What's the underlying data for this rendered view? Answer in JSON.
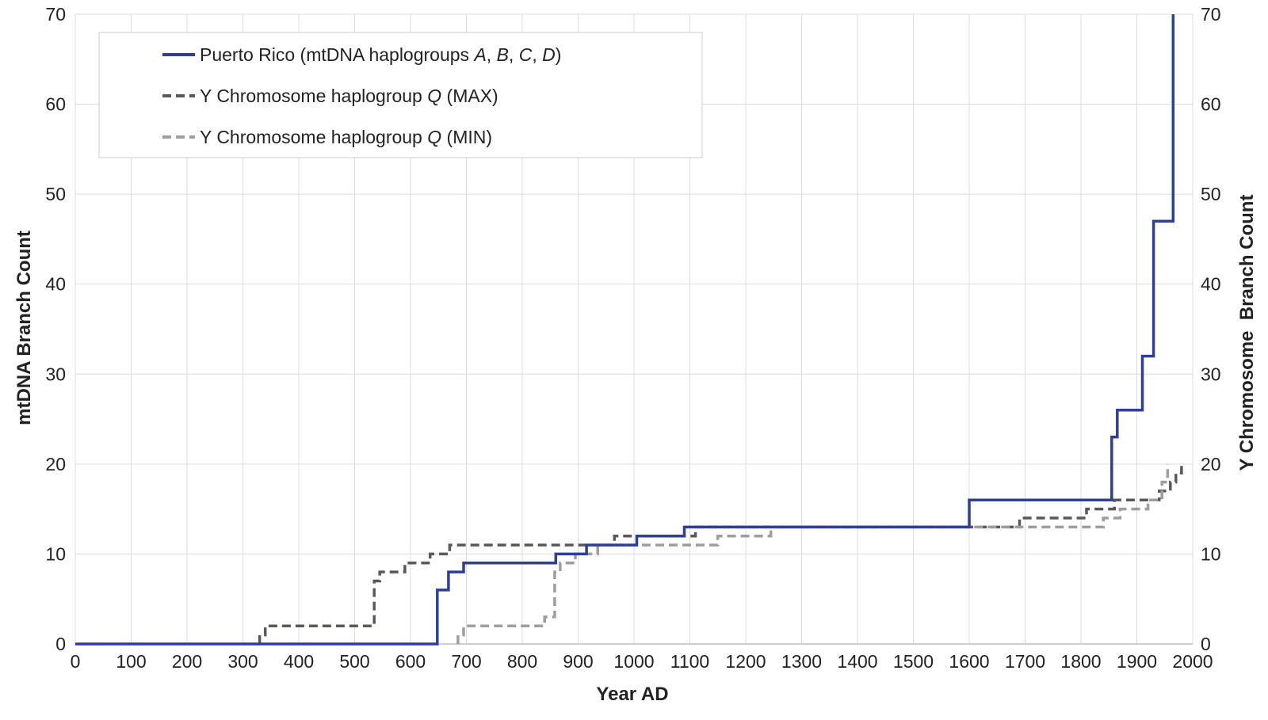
{
  "chart_data": {
    "type": "line",
    "title": "",
    "xlabel": "Year AD",
    "ylabel": "mtDNA Branch Count",
    "y2label": "Y Chromosome  Branch Count",
    "xlim": [
      0,
      2000
    ],
    "ylim": [
      0,
      70
    ],
    "y2lim": [
      0,
      70
    ],
    "x_ticks": [
      0,
      100,
      200,
      300,
      400,
      500,
      600,
      700,
      800,
      900,
      1000,
      1100,
      1200,
      1300,
      1400,
      1500,
      1600,
      1700,
      1800,
      1900,
      2000
    ],
    "y_ticks": [
      0,
      10,
      20,
      30,
      40,
      50,
      60,
      70
    ],
    "y2_ticks": [
      0,
      10,
      20,
      30,
      40,
      50,
      60,
      70
    ],
    "grid": true,
    "legend_position": "top-left",
    "series": [
      {
        "name": "Puerto Rico (mtDNA haplogroups A, B, C, D)",
        "legend_parts": [
          {
            "text": "Puerto Rico (mtDNA haplogroups ",
            "italic": false
          },
          {
            "text": "A",
            "italic": true
          },
          {
            "text": ", ",
            "italic": false
          },
          {
            "text": "B",
            "italic": true
          },
          {
            "text": ", ",
            "italic": false
          },
          {
            "text": "C",
            "italic": true
          },
          {
            "text": ", ",
            "italic": false
          },
          {
            "text": "D",
            "italic": true
          },
          {
            "text": ")",
            "italic": false
          }
        ],
        "axis": "left",
        "style": "solid",
        "color": "#2e3f9a",
        "step": true,
        "points": [
          [
            0,
            0
          ],
          [
            648,
            0
          ],
          [
            648,
            6
          ],
          [
            668,
            6
          ],
          [
            668,
            8
          ],
          [
            695,
            8
          ],
          [
            695,
            9
          ],
          [
            860,
            9
          ],
          [
            860,
            10
          ],
          [
            915,
            10
          ],
          [
            915,
            11
          ],
          [
            1005,
            11
          ],
          [
            1005,
            12
          ],
          [
            1090,
            12
          ],
          [
            1090,
            13
          ],
          [
            1600,
            13
          ],
          [
            1600,
            16
          ],
          [
            1855,
            16
          ],
          [
            1855,
            23
          ],
          [
            1865,
            23
          ],
          [
            1865,
            26
          ],
          [
            1910,
            26
          ],
          [
            1910,
            32
          ],
          [
            1930,
            32
          ],
          [
            1930,
            47
          ],
          [
            1965,
            47
          ],
          [
            1965,
            70
          ]
        ]
      },
      {
        "name": "Y Chromosome haplogroup Q (MAX)",
        "legend_parts": [
          {
            "text": "Y Chromosome haplogroup ",
            "italic": false
          },
          {
            "text": "Q",
            "italic": true
          },
          {
            "text": " (MAX)",
            "italic": false
          }
        ],
        "axis": "right",
        "style": "dashed",
        "color": "#595959",
        "step": true,
        "points": [
          [
            330,
            0
          ],
          [
            330,
            1
          ],
          [
            340,
            1
          ],
          [
            340,
            2
          ],
          [
            535,
            2
          ],
          [
            535,
            7
          ],
          [
            545,
            7
          ],
          [
            545,
            8
          ],
          [
            590,
            8
          ],
          [
            590,
            9
          ],
          [
            635,
            9
          ],
          [
            635,
            10
          ],
          [
            670,
            10
          ],
          [
            670,
            11
          ],
          [
            965,
            11
          ],
          [
            965,
            12
          ],
          [
            1110,
            12
          ],
          [
            1110,
            13
          ],
          [
            1690,
            13
          ],
          [
            1690,
            14
          ],
          [
            1810,
            14
          ],
          [
            1810,
            15
          ],
          [
            1860,
            15
          ],
          [
            1860,
            16
          ],
          [
            1940,
            16
          ],
          [
            1940,
            17
          ],
          [
            1960,
            17
          ],
          [
            1960,
            18
          ],
          [
            1970,
            18
          ],
          [
            1970,
            19
          ],
          [
            1980,
            19
          ],
          [
            1980,
            20
          ]
        ]
      },
      {
        "name": "Y Chromosome haplogroup Q (MIN)",
        "legend_parts": [
          {
            "text": "Y Chromosome haplogroup ",
            "italic": false
          },
          {
            "text": "Q",
            "italic": true
          },
          {
            "text": " (MIN)",
            "italic": false
          }
        ],
        "axis": "right",
        "style": "dashed",
        "color": "#9e9e9e",
        "step": true,
        "points": [
          [
            685,
            0
          ],
          [
            685,
            1
          ],
          [
            695,
            1
          ],
          [
            695,
            2
          ],
          [
            840,
            2
          ],
          [
            840,
            3
          ],
          [
            858,
            3
          ],
          [
            858,
            8
          ],
          [
            868,
            8
          ],
          [
            868,
            9
          ],
          [
            895,
            9
          ],
          [
            895,
            10
          ],
          [
            935,
            10
          ],
          [
            935,
            11
          ],
          [
            1150,
            11
          ],
          [
            1150,
            12
          ],
          [
            1245,
            12
          ],
          [
            1245,
            13
          ],
          [
            1840,
            13
          ],
          [
            1840,
            14
          ],
          [
            1870,
            14
          ],
          [
            1870,
            15
          ],
          [
            1920,
            15
          ],
          [
            1920,
            16
          ],
          [
            1945,
            16
          ],
          [
            1945,
            18
          ],
          [
            1955,
            18
          ],
          [
            1955,
            20
          ]
        ]
      }
    ]
  }
}
